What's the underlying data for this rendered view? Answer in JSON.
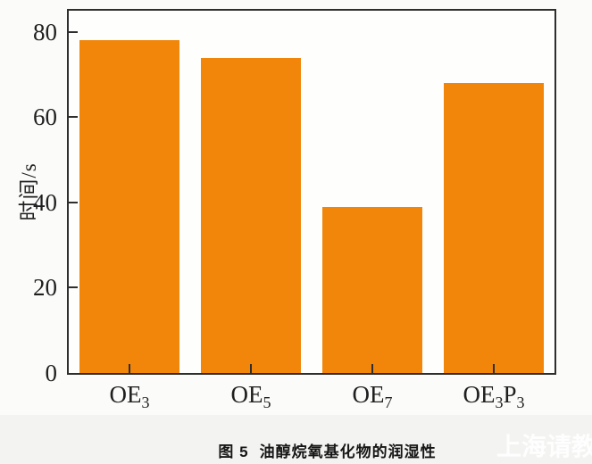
{
  "figure": {
    "caption_label": "图 5",
    "caption_title": "油醇烷氧基化物的润湿性",
    "watermark": "上海请教"
  },
  "chart_data": {
    "type": "bar",
    "title": "",
    "categories": [
      "OE_3",
      "OE_5",
      "OE_7",
      "OE_3P_3"
    ],
    "categories_display": [
      "OE₃",
      "OE₅",
      "OE₇",
      "OE₃P₃"
    ],
    "values": [
      78,
      74,
      39,
      68
    ],
    "xlabel": "",
    "ylabel": "时间/s",
    "yticks": [
      0,
      20,
      40,
      60,
      80
    ],
    "ylim": [
      0,
      85
    ],
    "bar_width_fraction": 0.82,
    "grid": false,
    "legend": "none",
    "bar_color": "#f1860b",
    "axis_color": "#2e2e2e",
    "text_color": "#1f1f1f"
  }
}
